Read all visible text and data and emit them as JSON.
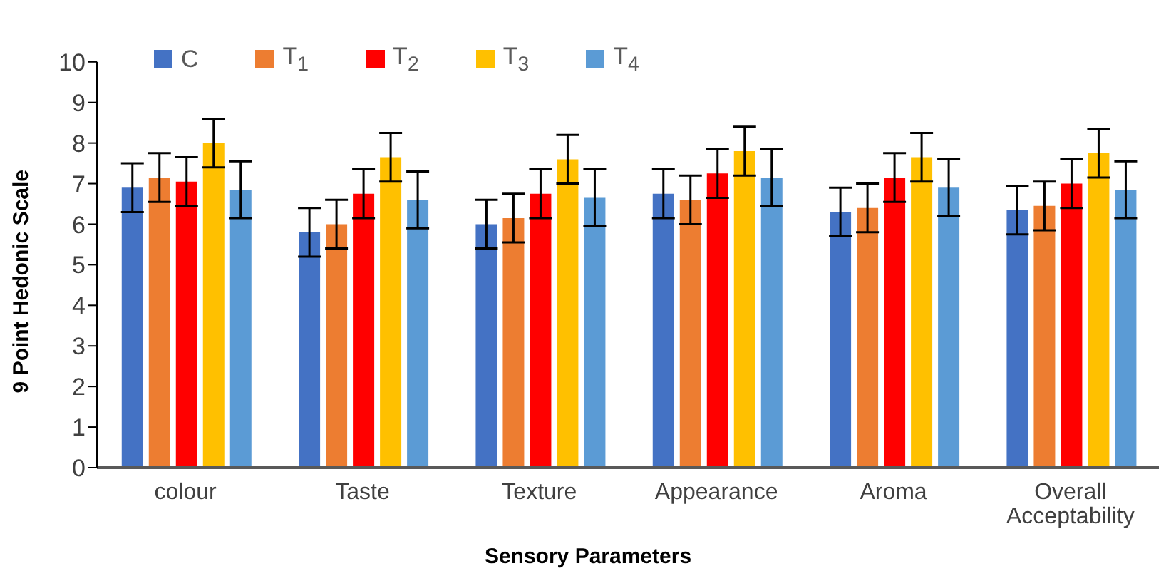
{
  "chart_data": {
    "type": "bar",
    "xlabel": "Sensory Parameters",
    "ylabel": "9 Point Hedonic Scale",
    "categories": [
      "colour",
      "Taste",
      "Texture",
      "Appearance",
      "Aroma",
      "Overall Acceptability"
    ],
    "series": [
      {
        "name": "C",
        "color": "#4472c4",
        "values": [
          6.9,
          5.8,
          6.0,
          6.75,
          6.3,
          6.35
        ],
        "errors": [
          0.6,
          0.6,
          0.6,
          0.6,
          0.6,
          0.6
        ]
      },
      {
        "name": "T$_{1}$",
        "color": "#ed7d31",
        "values": [
          7.15,
          6.0,
          6.15,
          6.6,
          6.4,
          6.45
        ],
        "errors": [
          0.6,
          0.6,
          0.6,
          0.6,
          0.6,
          0.6
        ]
      },
      {
        "name": "T$_{2}$",
        "color": "#ff0000",
        "values": [
          7.05,
          6.75,
          6.75,
          7.25,
          7.15,
          7.0
        ],
        "errors": [
          0.6,
          0.6,
          0.6,
          0.6,
          0.6,
          0.6
        ]
      },
      {
        "name": "T$_{3}$",
        "color": "#ffc000",
        "values": [
          8.0,
          7.65,
          7.6,
          7.8,
          7.65,
          7.75
        ],
        "errors": [
          0.6,
          0.6,
          0.6,
          0.6,
          0.6,
          0.6
        ]
      },
      {
        "name": "T$_{4}$",
        "color": "#5b9bd5",
        "values": [
          6.85,
          6.6,
          6.65,
          7.15,
          6.9,
          6.85
        ],
        "errors": [
          0.7,
          0.7,
          0.7,
          0.7,
          0.7,
          0.7
        ]
      }
    ],
    "ylim": [
      0,
      10
    ],
    "yticks": [
      0,
      1,
      2,
      3,
      4,
      5,
      6,
      7,
      8,
      9,
      10
    ],
    "grid": false,
    "legend": "top left"
  }
}
